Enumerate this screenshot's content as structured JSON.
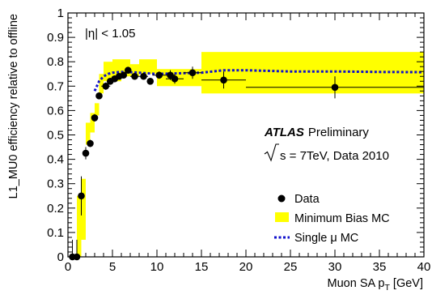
{
  "chart_data": {
    "type": "scatter",
    "xlabel": "Muon SA p",
    "xlabel_sub": "T",
    "xlabel_unit": " [GeV]",
    "ylabel": "L1_MU0 efficiency relative to offline",
    "xlim": [
      0,
      40
    ],
    "ylim": [
      0,
      1
    ],
    "x_ticks": [
      "0",
      "5",
      "10",
      "15",
      "20",
      "25",
      "30",
      "35",
      "40"
    ],
    "y_ticks": [
      "0",
      "0.1",
      "0.2",
      "0.3",
      "0.4",
      "0.5",
      "0.6",
      "0.7",
      "0.8",
      "0.9",
      "1"
    ],
    "grid": false,
    "legend_position": "bottom-right",
    "annotations": {
      "eta_cut": "|η| < 1.05",
      "atlas": "ATLAS",
      "preliminary": "Preliminary",
      "energy_prefix": "s = 7TeV, Data 2010"
    },
    "series": [
      {
        "name": "Data",
        "style": "points",
        "color": "#000000",
        "points": [
          {
            "x": 0.5,
            "y": 0.0,
            "xerr": 0.25,
            "yerr": 0.07
          },
          {
            "x": 1.0,
            "y": 0.0,
            "xerr": 0.25,
            "yerr": 0.07
          },
          {
            "x": 1.5,
            "y": 0.25,
            "xerr": 0.25,
            "yerr": 0.08
          },
          {
            "x": 2.0,
            "y": 0.425,
            "xerr": 0.25,
            "yerr": 0.025
          },
          {
            "x": 2.5,
            "y": 0.465,
            "xerr": 0.25,
            "yerr": 0.015
          },
          {
            "x": 3.0,
            "y": 0.57,
            "xerr": 0.25,
            "yerr": 0.015
          },
          {
            "x": 3.5,
            "y": 0.66,
            "xerr": 0.25,
            "yerr": 0.01
          },
          {
            "x": 4.25,
            "y": 0.7,
            "xerr": 0.5,
            "yerr": 0.015
          },
          {
            "x": 4.75,
            "y": 0.72,
            "xerr": 0.25,
            "yerr": 0.01
          },
          {
            "x": 5.25,
            "y": 0.73,
            "xerr": 0.25,
            "yerr": 0.01
          },
          {
            "x": 5.75,
            "y": 0.74,
            "xerr": 0.25,
            "yerr": 0.01
          },
          {
            "x": 6.25,
            "y": 0.745,
            "xerr": 0.25,
            "yerr": 0.01
          },
          {
            "x": 6.75,
            "y": 0.765,
            "xerr": 0.25,
            "yerr": 0.01
          },
          {
            "x": 7.5,
            "y": 0.74,
            "xerr": 0.5,
            "yerr": 0.01
          },
          {
            "x": 8.5,
            "y": 0.74,
            "xerr": 0.5,
            "yerr": 0.01
          },
          {
            "x": 9.25,
            "y": 0.72,
            "xerr": 0.25,
            "yerr": 0.01
          },
          {
            "x": 10.25,
            "y": 0.745,
            "xerr": 0.75,
            "yerr": 0.015
          },
          {
            "x": 11.5,
            "y": 0.745,
            "xerr": 0.5,
            "yerr": 0.02
          },
          {
            "x": 12.0,
            "y": 0.73,
            "xerr": 1.0,
            "yerr": 0.02
          },
          {
            "x": 14.0,
            "y": 0.755,
            "xerr": 1.0,
            "yerr": 0.025
          },
          {
            "x": 17.5,
            "y": 0.725,
            "xerr": 2.5,
            "yerr": 0.035
          },
          {
            "x": 30.0,
            "y": 0.695,
            "xerr": 10.0,
            "yerr": 0.045
          }
        ]
      },
      {
        "name": "Minimum Bias MC",
        "style": "band",
        "color": "#ffff00",
        "bins": [
          {
            "x0": 1.0,
            "x1": 1.5,
            "y0": 0.0,
            "y1": 0.25
          },
          {
            "x0": 1.5,
            "x1": 2.0,
            "y0": 0.07,
            "y1": 0.32
          },
          {
            "x0": 2.0,
            "x1": 2.5,
            "y0": 0.46,
            "y1": 0.55
          },
          {
            "x0": 2.5,
            "x1": 3.0,
            "y0": 0.51,
            "y1": 0.59
          },
          {
            "x0": 3.0,
            "x1": 3.5,
            "y0": 0.58,
            "y1": 0.63
          },
          {
            "x0": 3.5,
            "x1": 4.0,
            "y0": 0.67,
            "y1": 0.75
          },
          {
            "x0": 4.0,
            "x1": 5.0,
            "y0": 0.72,
            "y1": 0.8
          },
          {
            "x0": 5.0,
            "x1": 6.0,
            "y0": 0.72,
            "y1": 0.81
          },
          {
            "x0": 6.0,
            "x1": 7.0,
            "y0": 0.74,
            "y1": 0.81
          },
          {
            "x0": 7.0,
            "x1": 8.0,
            "y0": 0.74,
            "y1": 0.79
          },
          {
            "x0": 8.0,
            "x1": 10.0,
            "y0": 0.75,
            "y1": 0.81
          },
          {
            "x0": 10.0,
            "x1": 15.0,
            "y0": 0.7,
            "y1": 0.77
          },
          {
            "x0": 15.0,
            "x1": 40.0,
            "y0": 0.67,
            "y1": 0.84
          }
        ]
      },
      {
        "name": "Single μ MC",
        "style": "dashed-line",
        "color": "#1010cc",
        "x": [
          3.0,
          3.5,
          4.0,
          4.5,
          5.0,
          6.0,
          7.0,
          8.0,
          10.0,
          12.0,
          15.0,
          17.5,
          20.0,
          25.0,
          30.0,
          35.0,
          40.0
        ],
        "y": [
          0.68,
          0.72,
          0.74,
          0.75,
          0.755,
          0.758,
          0.757,
          0.755,
          0.75,
          0.752,
          0.755,
          0.765,
          0.765,
          0.76,
          0.76,
          0.758,
          0.757
        ]
      }
    ]
  }
}
